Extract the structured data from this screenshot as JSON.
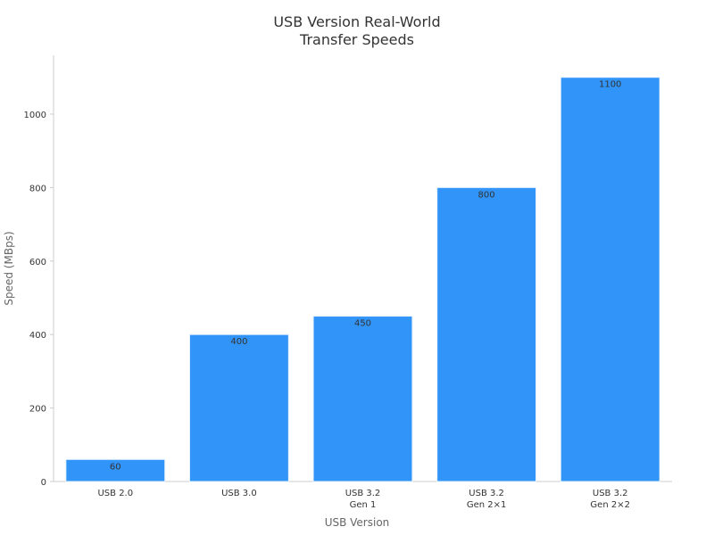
{
  "chart_data": {
    "type": "bar",
    "title": "USB Version Real-World\nTransfer Speeds",
    "x_label": "USB Version",
    "y_label": "Speed (MBps)",
    "categories": [
      "USB 2.0",
      "USB 3.0",
      "USB 3.2\nGen 1",
      "USB 3.2\nGen 2×1",
      "USB 3.2\nGen 2×2"
    ],
    "values": [
      60,
      400,
      450,
      800,
      1100
    ],
    "color": "#3194f8",
    "ylim": [
      0,
      1160
    ],
    "yticks": [
      0,
      200,
      400,
      600,
      800,
      1000
    ],
    "grid": false
  }
}
